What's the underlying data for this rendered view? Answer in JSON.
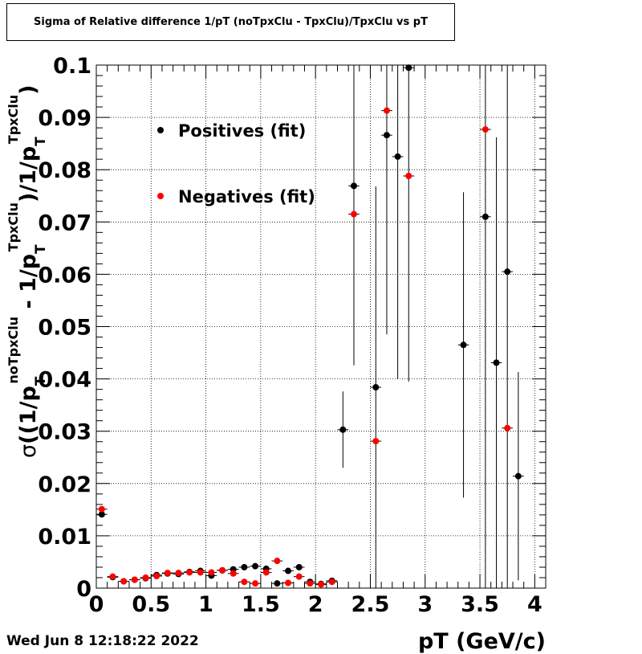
{
  "page": {
    "title": "Sigma of Relative difference 1/pT (noTpxClu - TpxClu)/TpxClu vs pT",
    "timestamp": "Wed Jun  8 12:18:22 2022"
  },
  "chart_data": {
    "type": "scatter",
    "title": "Sigma of Relative difference 1/pT (noTpxClu - TpxClu)/TpxClu vs pT",
    "xlabel": "pT (GeV/c)",
    "ylabel_parts": {
      "sigma": "σ",
      "open": "((1/p",
      "sub_T": "T",
      "sup_noTpxClu": "noTpxClu",
      "minus": " - 1/p",
      "sup_TpxClu": "TpxClu",
      "div": ")/1/p",
      "close": ")"
    },
    "xlim": [
      0,
      4.1
    ],
    "ylim": [
      0,
      0.1
    ],
    "x_ticks": [
      {
        "v": 0,
        "label": "0"
      },
      {
        "v": 0.5,
        "label": "0.5"
      },
      {
        "v": 1,
        "label": "1"
      },
      {
        "v": 1.5,
        "label": "1.5"
      },
      {
        "v": 2,
        "label": "2"
      },
      {
        "v": 2.5,
        "label": "2.5"
      },
      {
        "v": 3,
        "label": "3"
      },
      {
        "v": 3.5,
        "label": "3.5"
      },
      {
        "v": 4,
        "label": "4"
      }
    ],
    "y_ticks": [
      {
        "v": 0,
        "label": "0"
      },
      {
        "v": 0.01,
        "label": "0.01"
      },
      {
        "v": 0.02,
        "label": "0.02"
      },
      {
        "v": 0.03,
        "label": "0.03"
      },
      {
        "v": 0.04,
        "label": "0.04"
      },
      {
        "v": 0.05,
        "label": "0.05"
      },
      {
        "v": 0.06,
        "label": "0.06"
      },
      {
        "v": 0.07,
        "label": "0.07"
      },
      {
        "v": 0.08,
        "label": "0.08"
      },
      {
        "v": 0.09,
        "label": "0.09"
      },
      {
        "v": 0.1,
        "label": "0.1"
      }
    ],
    "grid": true,
    "legend_position": "top-left",
    "x_bin_half_width": 0.05,
    "series": [
      {
        "name": "Positives (fit)",
        "color": "#000000",
        "points": [
          {
            "x": 0.05,
            "y": 0.0141,
            "err": 0.0004
          },
          {
            "x": 0.15,
            "y": 0.0021,
            "err": 0.0002
          },
          {
            "x": 0.25,
            "y": 0.0013,
            "err": 0.0002
          },
          {
            "x": 0.35,
            "y": 0.0016,
            "err": 0.0002
          },
          {
            "x": 0.45,
            "y": 0.0019,
            "err": 0.0002
          },
          {
            "x": 0.55,
            "y": 0.0025,
            "err": 0.0002
          },
          {
            "x": 0.65,
            "y": 0.0028,
            "err": 0.0002
          },
          {
            "x": 0.75,
            "y": 0.0027,
            "err": 0.0002
          },
          {
            "x": 0.85,
            "y": 0.0031,
            "err": 0.0002
          },
          {
            "x": 0.95,
            "y": 0.0033,
            "err": 0.0002
          },
          {
            "x": 1.05,
            "y": 0.0024,
            "err": 0.0002
          },
          {
            "x": 1.15,
            "y": 0.0034,
            "err": 0.0002
          },
          {
            "x": 1.25,
            "y": 0.0036,
            "err": 0.0002
          },
          {
            "x": 1.35,
            "y": 0.004,
            "err": 0.0002
          },
          {
            "x": 1.45,
            "y": 0.0042,
            "err": 0.0002
          },
          {
            "x": 1.55,
            "y": 0.0037,
            "err": 0.0002
          },
          {
            "x": 1.65,
            "y": 0.0009,
            "err": 0.0002
          },
          {
            "x": 1.75,
            "y": 0.0033,
            "err": 0.0002
          },
          {
            "x": 1.85,
            "y": 0.004,
            "err": 0.0002
          },
          {
            "x": 1.95,
            "y": 0.0012,
            "err": 0.0002
          },
          {
            "x": 2.05,
            "y": 0.0008,
            "err": 0.0002
          },
          {
            "x": 2.15,
            "y": 0.0014,
            "err": 0.0002
          },
          {
            "x": 2.25,
            "y": 0.0303,
            "err": 0.0073
          },
          {
            "x": 2.35,
            "y": 0.0769,
            "err": 0.0343
          },
          {
            "x": 2.55,
            "y": 0.0384,
            "err": 0.0384
          },
          {
            "x": 2.65,
            "y": 0.0866,
            "err": 0.0381
          },
          {
            "x": 2.75,
            "y": 0.0825,
            "err": 0.0425
          },
          {
            "x": 2.85,
            "y": 0.0995,
            "err": 0.06
          },
          {
            "x": 3.35,
            "y": 0.0465,
            "err": 0.0292
          },
          {
            "x": 3.55,
            "y": 0.071,
            "err": 0.071
          },
          {
            "x": 3.65,
            "y": 0.0431,
            "err": 0.0431
          },
          {
            "x": 3.75,
            "y": 0.0605,
            "err": 0.0605
          },
          {
            "x": 3.85,
            "y": 0.0214,
            "err": 0.0199
          }
        ]
      },
      {
        "name": "Negatives (fit)",
        "color": "#ff0000",
        "points": [
          {
            "x": 0.05,
            "y": 0.0151,
            "err": 0.0004
          },
          {
            "x": 0.15,
            "y": 0.0022,
            "err": 0.0002
          },
          {
            "x": 0.25,
            "y": 0.0013,
            "err": 0.0002
          },
          {
            "x": 0.35,
            "y": 0.0016,
            "err": 0.0002
          },
          {
            "x": 0.45,
            "y": 0.002,
            "err": 0.0002
          },
          {
            "x": 0.55,
            "y": 0.0023,
            "err": 0.0002
          },
          {
            "x": 0.65,
            "y": 0.0029,
            "err": 0.0002
          },
          {
            "x": 0.75,
            "y": 0.0029,
            "err": 0.0002
          },
          {
            "x": 0.85,
            "y": 0.003,
            "err": 0.0002
          },
          {
            "x": 0.95,
            "y": 0.003,
            "err": 0.0002
          },
          {
            "x": 1.05,
            "y": 0.003,
            "err": 0.0002
          },
          {
            "x": 1.15,
            "y": 0.0034,
            "err": 0.0002
          },
          {
            "x": 1.25,
            "y": 0.0028,
            "err": 0.0002
          },
          {
            "x": 1.35,
            "y": 0.0012,
            "err": 0.0002
          },
          {
            "x": 1.45,
            "y": 0.0009,
            "err": 0.0002
          },
          {
            "x": 1.55,
            "y": 0.003,
            "err": 0.0002
          },
          {
            "x": 1.65,
            "y": 0.0052,
            "err": 0.0002
          },
          {
            "x": 1.75,
            "y": 0.001,
            "err": 0.0002
          },
          {
            "x": 1.85,
            "y": 0.0022,
            "err": 0.0002
          },
          {
            "x": 1.95,
            "y": 0.0009,
            "err": 0.0002
          },
          {
            "x": 2.05,
            "y": 0.0007,
            "err": 0.0002
          },
          {
            "x": 2.15,
            "y": 0.0012,
            "err": 0.0002
          },
          {
            "x": 2.35,
            "y": 0.0715,
            "err": 0.0003
          },
          {
            "x": 2.55,
            "y": 0.0281,
            "err": 0.0003
          },
          {
            "x": 2.65,
            "y": 0.0913,
            "err": 0.0003
          },
          {
            "x": 2.85,
            "y": 0.0788,
            "err": 0.0003
          },
          {
            "x": 3.55,
            "y": 0.0877,
            "err": 0.0003
          },
          {
            "x": 3.75,
            "y": 0.0306,
            "err": 0.0003
          }
        ]
      }
    ]
  }
}
